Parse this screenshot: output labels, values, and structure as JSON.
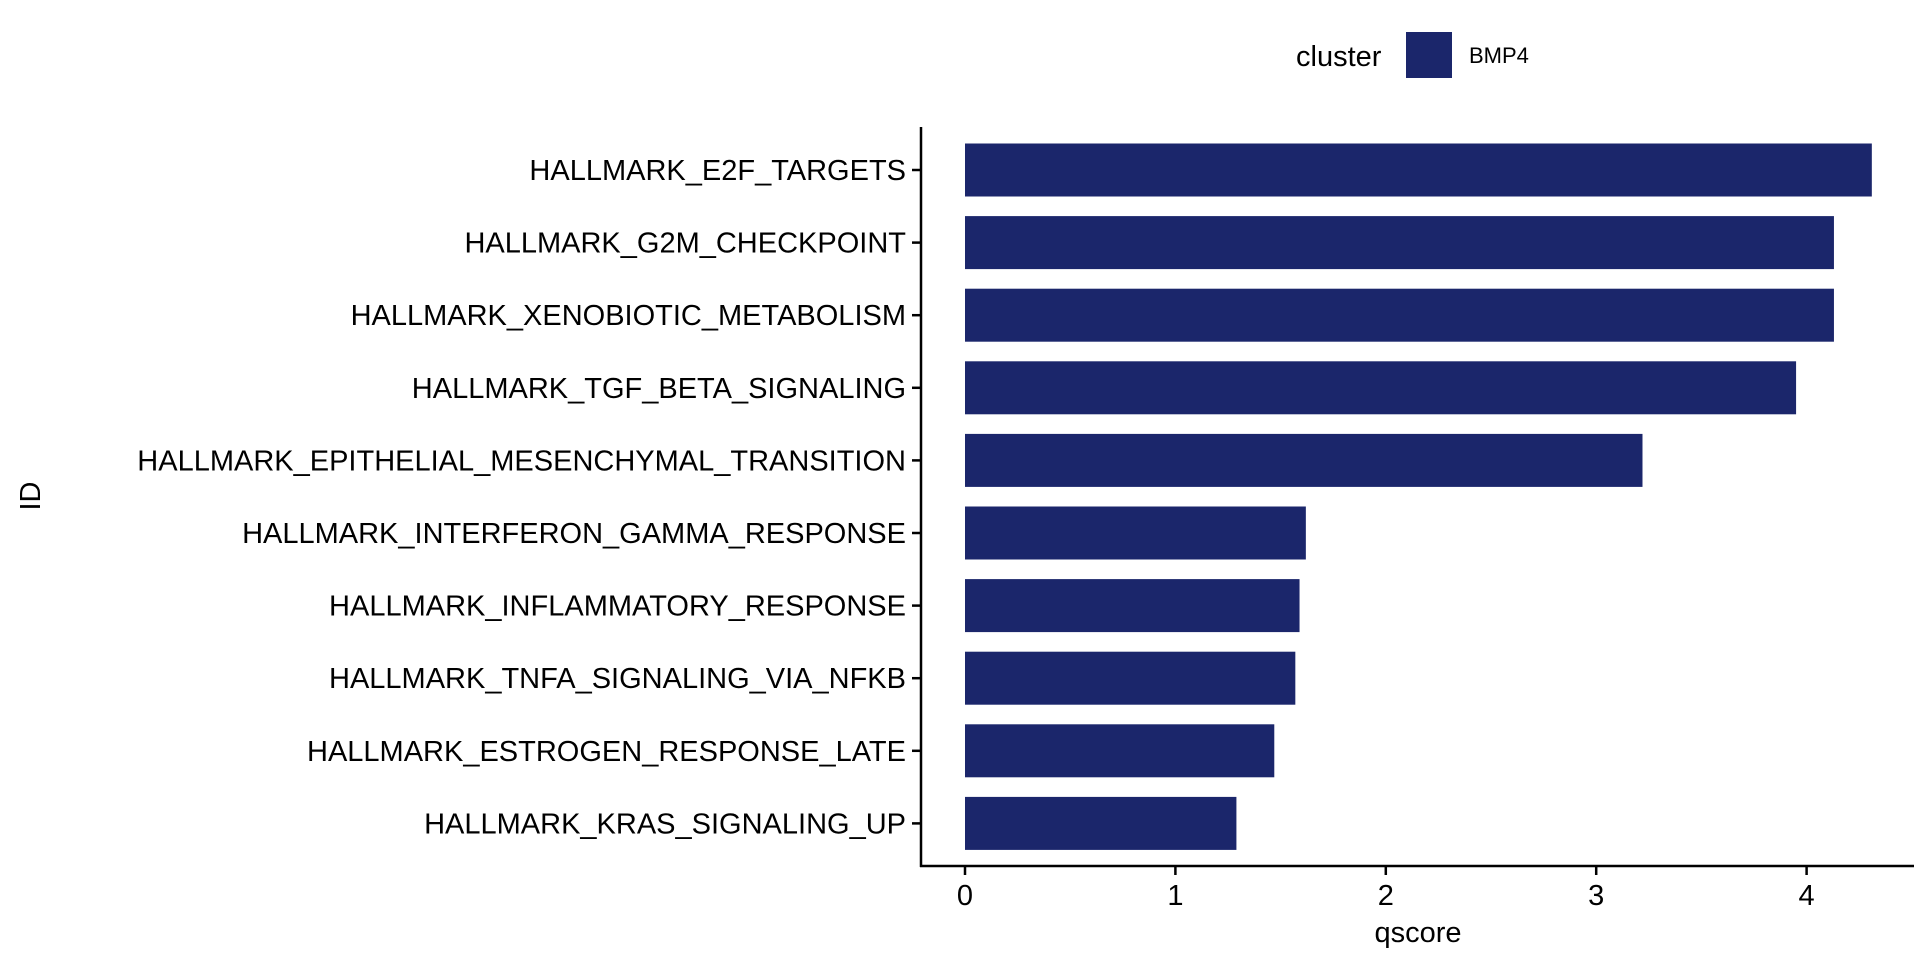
{
  "chart_data": {
    "type": "bar",
    "orientation": "horizontal",
    "categories": [
      "HALLMARK_E2F_TARGETS",
      "HALLMARK_G2M_CHECKPOINT",
      "HALLMARK_XENOBIOTIC_METABOLISM",
      "HALLMARK_TGF_BETA_SIGNALING",
      "HALLMARK_EPITHELIAL_MESENCHYMAL_TRANSITION",
      "HALLMARK_INTERFERON_GAMMA_RESPONSE",
      "HALLMARK_INFLAMMATORY_RESPONSE",
      "HALLMARK_TNFA_SIGNALING_VIA_NFKB",
      "HALLMARK_ESTROGEN_RESPONSE_LATE",
      "HALLMARK_KRAS_SIGNALING_UP"
    ],
    "series": [
      {
        "name": "BMP4",
        "values": [
          4.31,
          4.13,
          4.13,
          3.95,
          3.22,
          1.62,
          1.59,
          1.57,
          1.47,
          1.29
        ]
      }
    ],
    "xlabel": "qscore",
    "ylabel": "ID",
    "xlim": [
      -0.21,
      4.51
    ],
    "xticks": [
      0,
      1,
      2,
      3,
      4
    ],
    "grid": false,
    "legend": {
      "title": "cluster",
      "position": "top"
    },
    "colors": {
      "BMP4": "#1b266b"
    }
  }
}
